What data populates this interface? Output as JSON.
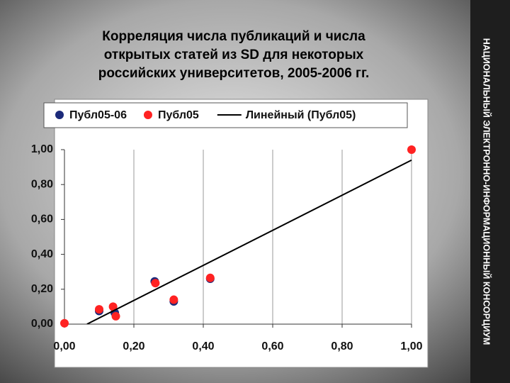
{
  "sidebar_text": "НАЦИОНАЛЬНЫЙ ЭЛЕКТРОННО-ИНФОРМАЦИОННЫЙ КОНСОРЦИУМ",
  "chart_data": {
    "type": "scatter",
    "title": [
      "Корреляция числа публикаций и числа",
      "открытых статей из SD для  некоторых",
      "российских университетов, 2005-2006 гг."
    ],
    "series": [
      {
        "name": "Публ05-06",
        "color": "#1c2a7a",
        "x": [
          0.1,
          0.145,
          0.26,
          0.315,
          0.42
        ],
        "values": [
          0.075,
          0.065,
          0.245,
          0.13,
          0.26
        ]
      },
      {
        "name": "Публ05",
        "color": "#ff2222",
        "x": [
          0.0,
          0.1,
          0.14,
          0.148,
          0.262,
          0.315,
          0.42,
          1.0
        ],
        "values": [
          0.005,
          0.085,
          0.1,
          0.045,
          0.235,
          0.14,
          0.265,
          1.0
        ]
      },
      {
        "name": "Линейный (Публ05)",
        "color": "#000000",
        "kind": "line",
        "x": [
          0.065,
          1.0
        ],
        "values": [
          0.0,
          0.94
        ]
      }
    ],
    "xlim": [
      0,
      1
    ],
    "ylim": [
      0,
      1
    ],
    "xticks": [
      {
        "value": 0,
        "label": "0,00"
      },
      {
        "value": 0.2,
        "label": "0,20"
      },
      {
        "value": 0.4,
        "label": "0,40"
      },
      {
        "value": 0.6,
        "label": "0,60"
      },
      {
        "value": 0.8,
        "label": "0,80"
      },
      {
        "value": 1,
        "label": "1,00"
      }
    ],
    "yticks": [
      {
        "value": 0,
        "label": "0,00"
      },
      {
        "value": 0.2,
        "label": "0,20"
      },
      {
        "value": 0.4,
        "label": "0,40"
      },
      {
        "value": 0.6,
        "label": "0,60"
      },
      {
        "value": 0.8,
        "label": "0,80"
      },
      {
        "value": 1,
        "label": "1,00"
      }
    ],
    "grid": true,
    "legend": "top"
  }
}
